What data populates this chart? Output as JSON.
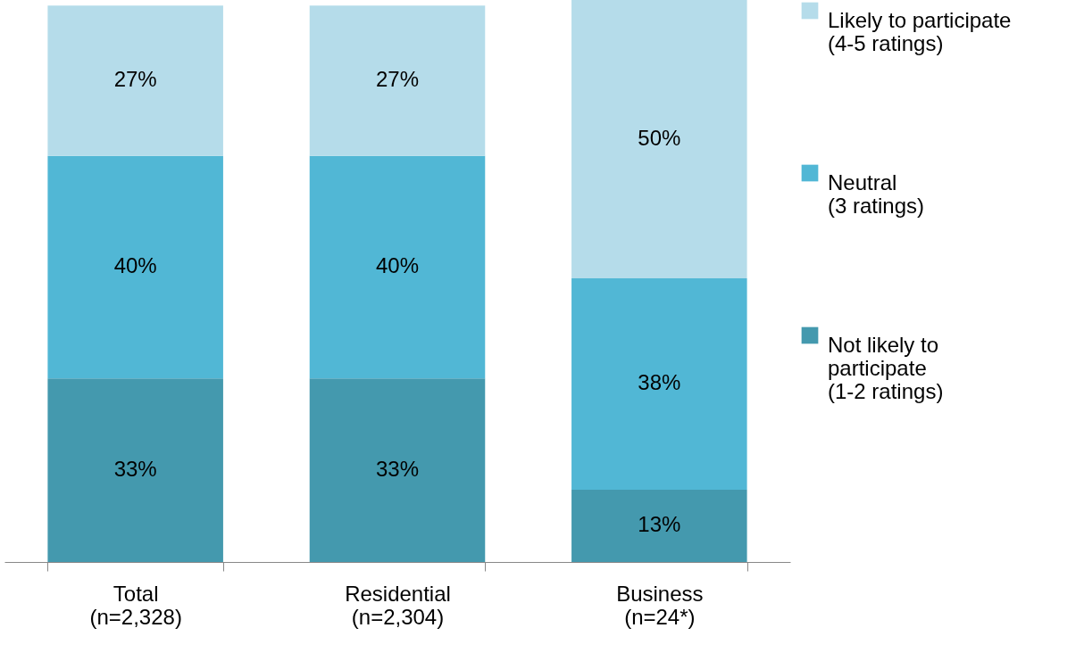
{
  "chart_data": {
    "type": "bar",
    "stacked": true,
    "categories": [
      "Total\n(n=2,328)",
      "Residential\n(n=2,304)",
      "Business\n(n=24*)"
    ],
    "series": [
      {
        "name": "Not likely to\nparticipate\n(1-2 ratings)",
        "color": "#4499ae",
        "values": [
          33,
          33,
          13
        ],
        "value_labels": [
          "33%",
          "33%",
          "13%"
        ]
      },
      {
        "name": "Neutral\n(3 ratings)",
        "color": "#51b7d5",
        "values": [
          40,
          40,
          38
        ],
        "value_labels": [
          "40%",
          "40%",
          "38%"
        ]
      },
      {
        "name": "Likely to participate\n(4-5 ratings)",
        "color": "#b5dcea",
        "values": [
          27,
          27,
          50
        ],
        "value_labels": [
          "27%",
          "27%",
          "50%"
        ]
      }
    ],
    "legend": "right",
    "grid": false,
    "tick_labels": "x"
  }
}
